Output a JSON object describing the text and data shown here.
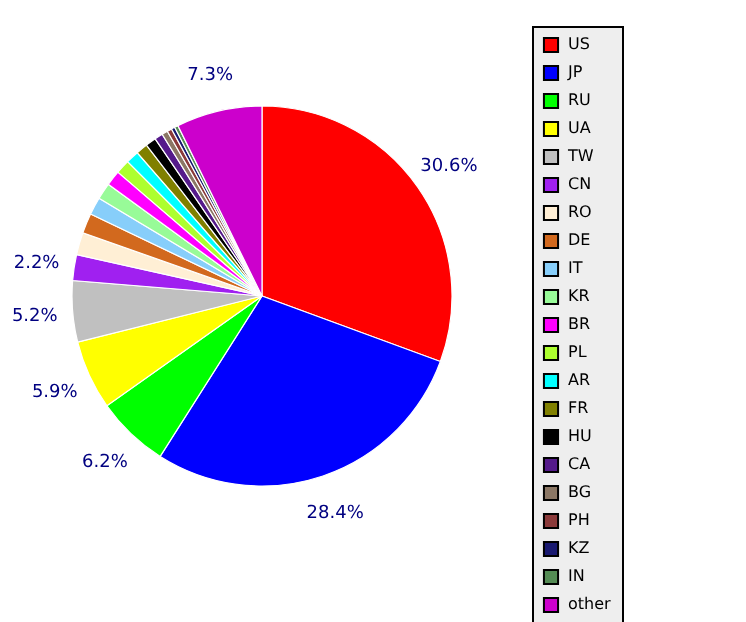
{
  "chart_data": {
    "type": "pie",
    "categories": [
      "US",
      "JP",
      "RU",
      "UA",
      "TW",
      "CN",
      "RO",
      "DE",
      "IT",
      "KR",
      "BR",
      "PL",
      "AR",
      "FR",
      "HU",
      "CA",
      "BG",
      "PH",
      "KZ",
      "IN",
      "other"
    ],
    "values": [
      30.6,
      28.4,
      6.2,
      5.9,
      5.2,
      2.2,
      1.9,
      1.7,
      1.5,
      1.4,
      1.3,
      1.2,
      1.1,
      1.0,
      0.9,
      0.7,
      0.5,
      0.4,
      0.3,
      0.3,
      7.3
    ],
    "colors": [
      "#ff0000",
      "#0000ff",
      "#00ff00",
      "#ffff00",
      "#c0c0c0",
      "#a020f0",
      "#ffefd5",
      "#d2691e",
      "#87cefa",
      "#98fb98",
      "#ff00ff",
      "#adff2f",
      "#00ffff",
      "#808000",
      "#000000",
      "#551a8b",
      "#8b7765",
      "#8b3a3a",
      "#191970",
      "#548b54",
      "#cc00cc"
    ],
    "value_labels": [
      "30.6%",
      "28.4%",
      "6.2%",
      "5.9%",
      "5.2%",
      "2.2%",
      null,
      null,
      null,
      null,
      null,
      null,
      null,
      null,
      null,
      null,
      null,
      null,
      null,
      null,
      "7.3%"
    ],
    "legend": "right"
  }
}
